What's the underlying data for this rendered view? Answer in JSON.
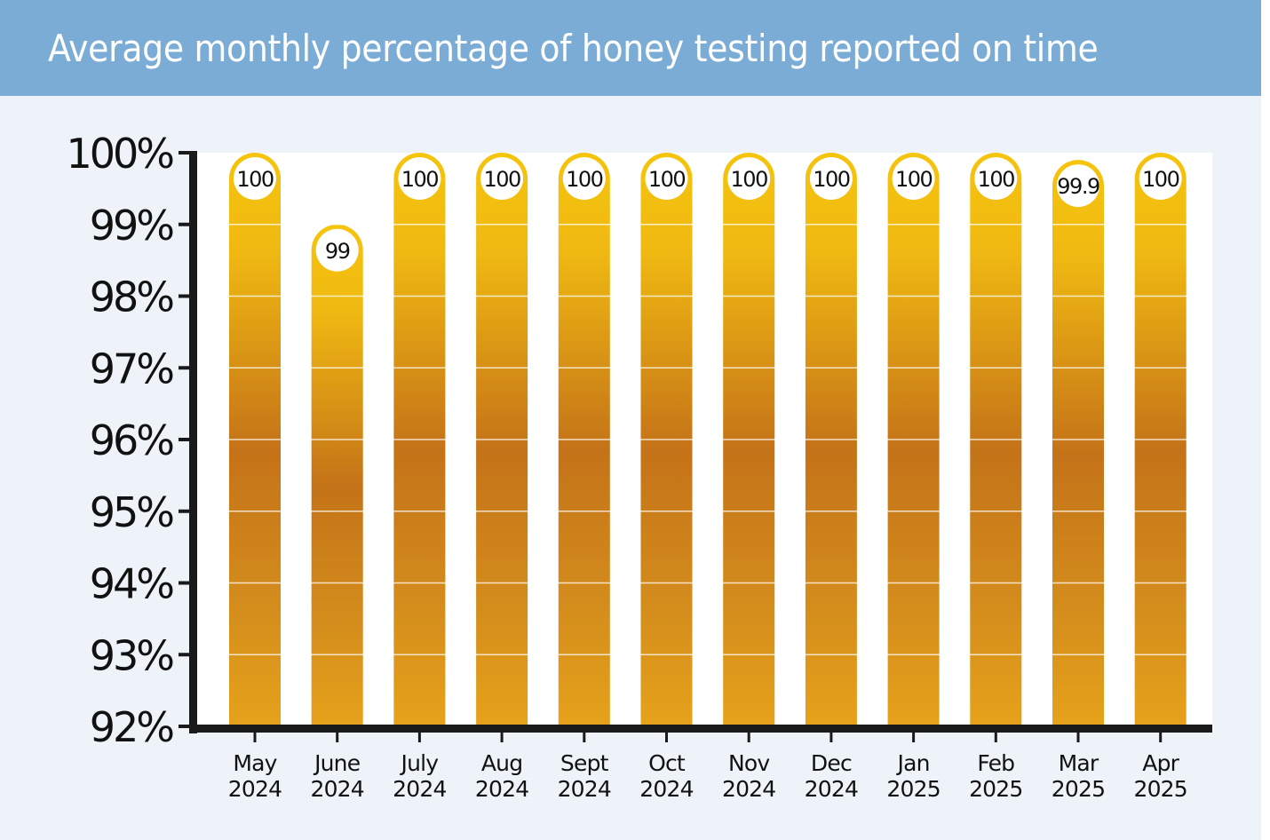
{
  "title": "Average monthly percentage of honey testing reported on time",
  "chart_data": {
    "type": "bar",
    "title": "Average monthly percentage of honey testing reported on time",
    "xlabel": "",
    "ylabel": "",
    "ylim": [
      92,
      100
    ],
    "y_ticks": [
      "92%",
      "93%",
      "94%",
      "95%",
      "96%",
      "97%",
      "98%",
      "99%",
      "100%"
    ],
    "grid": true,
    "categories": [
      {
        "month": "May",
        "year": "2024"
      },
      {
        "month": "June",
        "year": "2024"
      },
      {
        "month": "July",
        "year": "2024"
      },
      {
        "month": "Aug",
        "year": "2024"
      },
      {
        "month": "Sept",
        "year": "2024"
      },
      {
        "month": "Oct",
        "year": "2024"
      },
      {
        "month": "Nov",
        "year": "2024"
      },
      {
        "month": "Dec",
        "year": "2024"
      },
      {
        "month": "Jan",
        "year": "2025"
      },
      {
        "month": "Feb",
        "year": "2025"
      },
      {
        "month": "Mar",
        "year": "2025"
      },
      {
        "month": "Apr",
        "year": "2025"
      }
    ],
    "values": [
      100,
      99,
      100,
      100,
      100,
      100,
      100,
      100,
      100,
      100,
      99.9,
      100
    ],
    "value_labels": [
      "100",
      "99",
      "100",
      "100",
      "100",
      "100",
      "100",
      "100",
      "100",
      "100",
      "99.9",
      "100"
    ],
    "colors": {
      "header": "#7bacd6",
      "background": "#eef3fa",
      "bar_light": "#f4c20f",
      "bar_dark": "#c27217",
      "axis": "#1a1a1a"
    }
  }
}
